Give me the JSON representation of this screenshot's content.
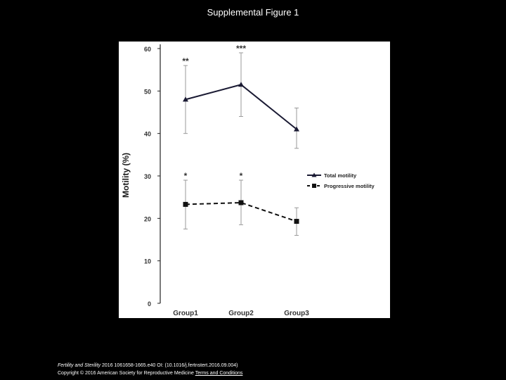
{
  "slide": {
    "title": "Supplemental Figure 1"
  },
  "footer": {
    "journal": "Fertility and Sterility",
    "citation": " 2016 1061658-1665.e40 OI: (10.1016/j.fertnstert.2016.09.004)",
    "copyright": "Copyright © 2016 American Society for Reproductive Medicine",
    "terms_link": "Terms and Conditions"
  },
  "chart_data": {
    "type": "line",
    "categories": [
      "Group1",
      "Group2",
      "Group3"
    ],
    "ylabel": "Motility (%)",
    "xlabel": "",
    "ylim": [
      0,
      60
    ],
    "yticks": [
      0,
      10,
      20,
      30,
      40,
      50,
      60
    ],
    "grid": false,
    "legend_position": "right",
    "series": [
      {
        "name": "Total motility",
        "marker": "triangle",
        "line_style": "solid",
        "color": "#1a1a33",
        "values": [
          48,
          51.5,
          41
        ],
        "error_low": [
          40,
          44,
          36.5
        ],
        "error_high": [
          56,
          59,
          46
        ],
        "annotations": [
          "**",
          "***",
          ""
        ]
      },
      {
        "name": "Progressive motility",
        "marker": "square",
        "line_style": "dashed",
        "color": "#111111",
        "values": [
          23.3,
          23.7,
          19.3
        ],
        "error_low": [
          17.5,
          18.5,
          16
        ],
        "error_high": [
          29,
          29,
          22.5
        ],
        "annotations": [
          "*",
          "*",
          ""
        ]
      }
    ]
  }
}
